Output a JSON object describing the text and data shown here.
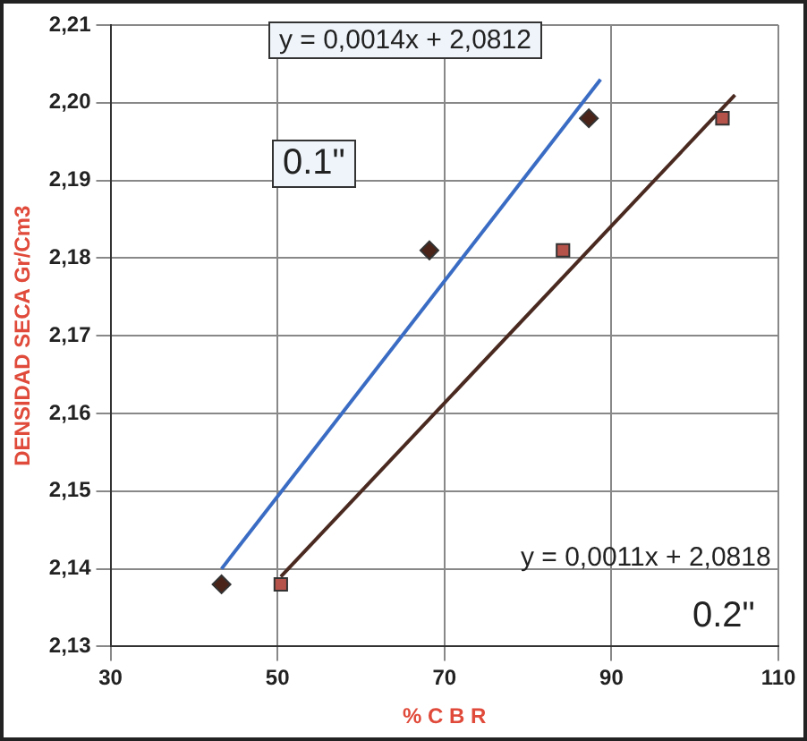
{
  "chart_data": {
    "type": "scatter",
    "xlabel": "% C B R",
    "ylabel": "DENSIDAD SECA Gr/Cm3",
    "xlim": [
      30,
      110
    ],
    "xticks": [
      30,
      50,
      70,
      90,
      110
    ],
    "ylim": [
      2.13,
      2.21
    ],
    "yticks": [
      {
        "value": 2.13,
        "label": "2,13"
      },
      {
        "value": 2.14,
        "label": "2,14"
      },
      {
        "value": 2.15,
        "label": "2,15"
      },
      {
        "value": 2.16,
        "label": "2,16"
      },
      {
        "value": 2.17,
        "label": "2,17"
      },
      {
        "value": 2.18,
        "label": "2,18"
      },
      {
        "value": 2.19,
        "label": "2,19"
      },
      {
        "value": 2.2,
        "label": "2,20"
      },
      {
        "value": 2.21,
        "label": "2,21"
      }
    ],
    "grid": true,
    "legend": false,
    "series": [
      {
        "type": "scatter",
        "marker": "diamond",
        "color": "#4a2418",
        "x": [
          43.3,
          68.2,
          87.3
        ],
        "values": [
          2.138,
          2.181,
          2.198
        ]
      },
      {
        "type": "scatter",
        "marker": "square",
        "color": "#b5524a",
        "x": [
          50.4,
          84.2,
          103.3
        ],
        "values": [
          2.138,
          2.181,
          2.198
        ]
      },
      {
        "type": "line",
        "marker": "none",
        "color": "#3a6cc4",
        "x": [
          43.3,
          88.7
        ],
        "values": [
          2.14,
          2.203
        ]
      },
      {
        "type": "line",
        "marker": "none",
        "color": "#4a2a20",
        "x": [
          50.4,
          104.8
        ],
        "values": [
          2.139,
          2.201
        ]
      }
    ],
    "annotations": [
      "y = 0,0014x + 2,0812",
      "0.1\"",
      "y = 0,0011x + 2,0818",
      "0.2\""
    ]
  }
}
